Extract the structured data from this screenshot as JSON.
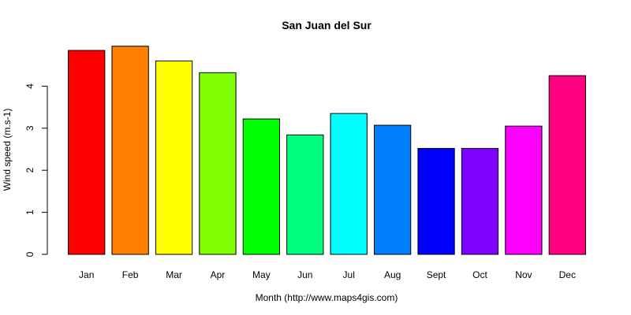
{
  "chart_data": {
    "type": "bar",
    "title": "San Juan del Sur",
    "xlabel": "Month (http://www.maps4gis.com)",
    "ylabel": "Wind speed (m.s-1)",
    "categories": [
      "Jan",
      "Feb",
      "Mar",
      "Apr",
      "May",
      "Jun",
      "Jul",
      "Aug",
      "Sept",
      "Oct",
      "Nov",
      "Dec"
    ],
    "values": [
      4.85,
      4.95,
      4.6,
      4.32,
      3.22,
      2.84,
      3.35,
      3.07,
      2.52,
      2.52,
      3.05,
      4.25
    ],
    "colors": [
      "#ff0000",
      "#ff8000",
      "#ffff00",
      "#80ff00",
      "#00ff00",
      "#00ff80",
      "#00ffff",
      "#0080ff",
      "#0000ff",
      "#8000ff",
      "#ff00ff",
      "#ff0080"
    ],
    "yticks": [
      0,
      1,
      2,
      3,
      4
    ],
    "ylim": [
      0,
      5
    ],
    "grid": false,
    "legend": "none"
  }
}
